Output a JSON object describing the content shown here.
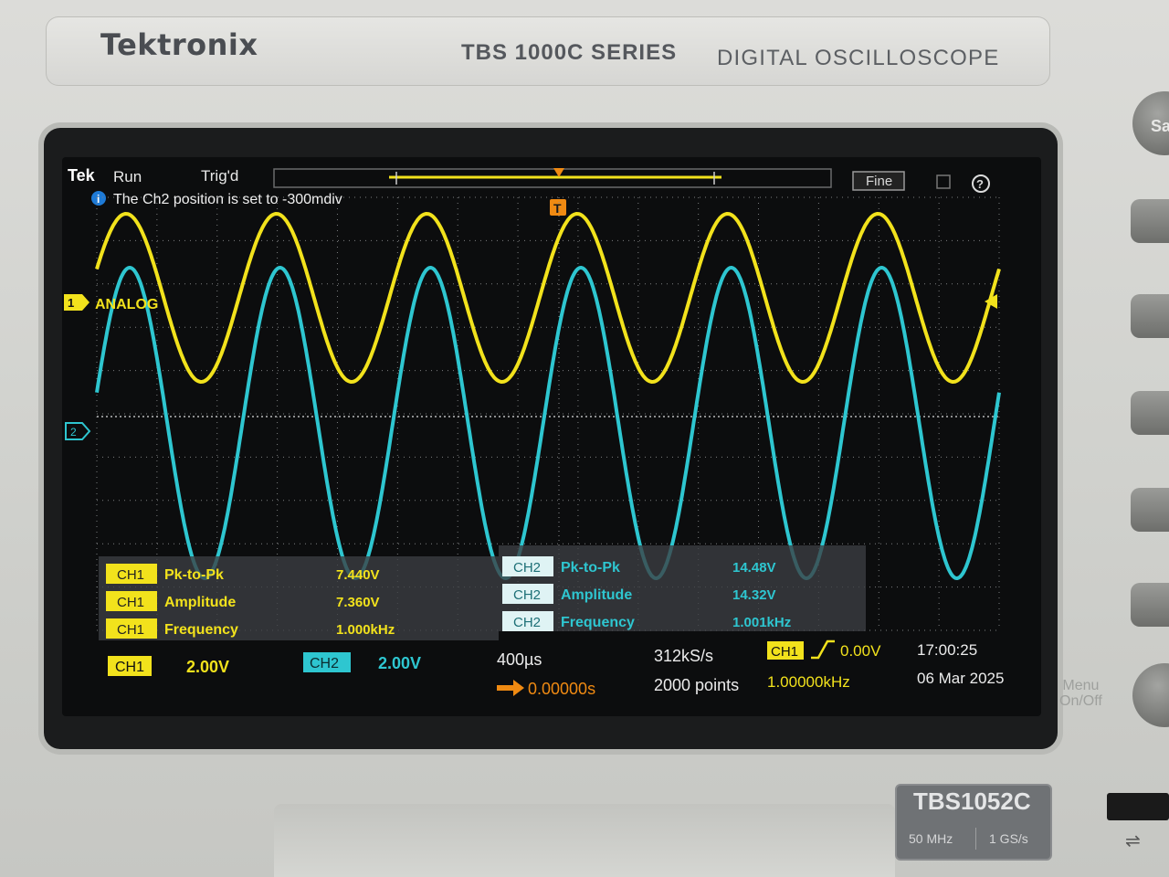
{
  "device": {
    "brand": "Tektronix",
    "series": "TBS 1000C SERIES",
    "description": "DIGITAL OSCILLOSCOPE",
    "model": "TBS1052C",
    "bandwidth": "50 MHz",
    "sample_rate_spec": "1 GS/s",
    "save_button_label": "Sa",
    "menu_button_label_1": "Menu",
    "menu_button_label_2": "On/Off"
  },
  "status_bar": {
    "logo": "Tek",
    "run_state": "Run",
    "trigger_state": "Trig'd",
    "fine_label": "Fine",
    "help_label": "?"
  },
  "notification": {
    "text": "The Ch2 position is set to -300mdiv",
    "info_icon": "info-icon"
  },
  "markers": {
    "ch1_marker": "1",
    "ch1_label": "ANALOG",
    "ch2_marker": "2",
    "trigger_marker": "T"
  },
  "measurements": {
    "ch1": [
      {
        "tag": "CH1",
        "name": "Pk-to-Pk",
        "value": "7.440V"
      },
      {
        "tag": "CH1",
        "name": "Amplitude",
        "value": "7.360V"
      },
      {
        "tag": "CH1",
        "name": "Frequency",
        "value": "1.000kHz"
      }
    ],
    "ch2": [
      {
        "tag": "CH2",
        "name": "Pk-to-Pk",
        "value": "14.48V"
      },
      {
        "tag": "CH2",
        "name": "Amplitude",
        "value": "14.32V"
      },
      {
        "tag": "CH2",
        "name": "Frequency",
        "value": "1.001kHz"
      }
    ]
  },
  "bottom_bar": {
    "ch1_tag": "CH1",
    "ch1_scale": "2.00V",
    "ch2_tag": "CH2",
    "ch2_scale": "2.00V",
    "timebase": "400µs",
    "horizontal_position": "0.00000s",
    "sample_rate": "312kS/s",
    "record_length": "2000 points",
    "trigger_source": "CH1",
    "trigger_level": "0.00V",
    "trigger_frequency": "1.00000kHz",
    "time": "17:00:25",
    "date": "06 Mar 2025"
  },
  "colors": {
    "ch1": "#f2e21c",
    "ch2": "#2ec6d0",
    "trigger": "#f08a12",
    "grid": "#7d7f80"
  },
  "waveforms": {
    "ch1": {
      "cycles_on_screen": 6,
      "shape": "sine",
      "phase": "peak-left"
    },
    "ch2": {
      "cycles_on_screen": 6,
      "shape": "sine",
      "phase": "peak-left"
    }
  }
}
